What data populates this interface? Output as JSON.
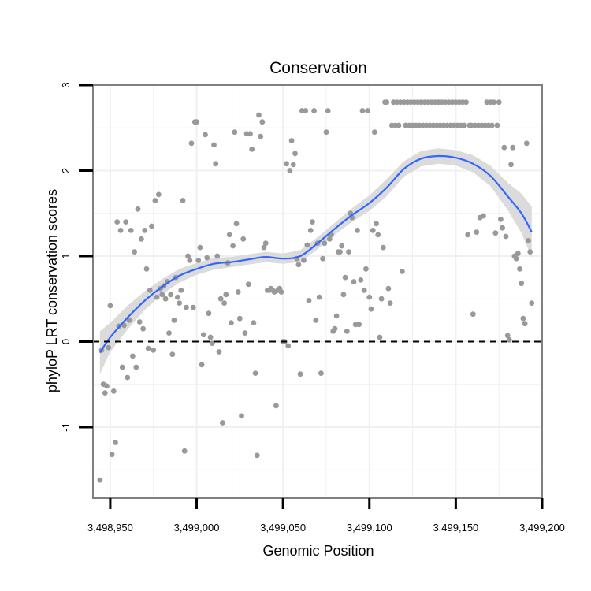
{
  "chart_data": {
    "type": "scatter",
    "title": "Conservation",
    "xlabel": "Genomic Position",
    "ylabel": "phyloP LRT conservation scores",
    "xlim": [
      3498940,
      3499200
    ],
    "ylim": [
      -1.83,
      3.0
    ],
    "x_ticks": [
      3498950,
      3499000,
      3499050,
      3499100,
      3499150,
      3499200
    ],
    "x_tick_labels": [
      "3,498,950",
      "3,499,000",
      "3,499,050",
      "3,499,100",
      "3,499,150",
      "3,499,200"
    ],
    "y_ticks": [
      -1,
      0,
      1,
      2,
      3
    ],
    "y_tick_labels": [
      "-1",
      "0",
      "1",
      "2",
      "3"
    ],
    "reference_line": {
      "y": 0,
      "style": "dashed"
    },
    "colors": {
      "points": "#999999",
      "smooth": "#3366ff",
      "ribbon": "#d9d9d9",
      "grid": "#f0f0f0",
      "border": "#808080"
    },
    "points": [
      [
        3498944,
        -1.62
      ],
      [
        3498945,
        -0.1
      ],
      [
        3498946,
        -0.5
      ],
      [
        3498947,
        -0.6
      ],
      [
        3498948,
        -0.52
      ],
      [
        3498949,
        -0.07
      ],
      [
        3498950,
        0.42
      ],
      [
        3498951,
        -1.32
      ],
      [
        3498952,
        -0.58
      ],
      [
        3498953,
        -1.18
      ],
      [
        3498954,
        1.4
      ],
      [
        3498955,
        0.18
      ],
      [
        3498956,
        1.3
      ],
      [
        3498957,
        -0.3
      ],
      [
        3498958,
        0.19
      ],
      [
        3498959,
        1.4
      ],
      [
        3498960,
        -0.42
      ],
      [
        3498961,
        0.25
      ],
      [
        3498962,
        1.3
      ],
      [
        3498963,
        -0.17
      ],
      [
        3498964,
        1.05
      ],
      [
        3498965,
        -0.3
      ],
      [
        3498966,
        1.55
      ],
      [
        3498967,
        0.23
      ],
      [
        3498968,
        1.2
      ],
      [
        3498969,
        0.15
      ],
      [
        3498970,
        1.3
      ],
      [
        3498971,
        0.85
      ],
      [
        3498972,
        -0.08
      ],
      [
        3498973,
        0.6
      ],
      [
        3498974,
        1.35
      ],
      [
        3498975,
        -0.1
      ],
      [
        3498976,
        1.65
      ],
      [
        3498977,
        0.52
      ],
      [
        3498978,
        1.72
      ],
      [
        3498979,
        0.62
      ],
      [
        3498980,
        0.55
      ],
      [
        3498981,
        0.65
      ],
      [
        3498982,
        0.5
      ],
      [
        3498983,
        0.7
      ],
      [
        3498984,
        0.1
      ],
      [
        3498985,
        0.55
      ],
      [
        3498986,
        -0.15
      ],
      [
        3498987,
        0.25
      ],
      [
        3498988,
        0.75
      ],
      [
        3498989,
        0.52
      ],
      [
        3498990,
        0.45
      ],
      [
        3498991,
        0.6
      ],
      [
        3498992,
        1.65
      ],
      [
        3498993,
        -1.28
      ],
      [
        3498994,
        0.4
      ],
      [
        3498995,
        1.0
      ],
      [
        3498996,
        0.95
      ],
      [
        3498997,
        2.32
      ],
      [
        3498998,
        0.4
      ],
      [
        3498999,
        2.57
      ],
      [
        3499000,
        2.57
      ],
      [
        3499001,
        0.95
      ],
      [
        3499002,
        1.1
      ],
      [
        3499003,
        -0.27
      ],
      [
        3499004,
        0.08
      ],
      [
        3499005,
        2.42
      ],
      [
        3499006,
        0.98
      ],
      [
        3499007,
        0.33
      ],
      [
        3499008,
        0.05
      ],
      [
        3499009,
        -0.02
      ],
      [
        3499010,
        2.3
      ],
      [
        3499011,
        2.08
      ],
      [
        3499012,
        1.0
      ],
      [
        3499013,
        -0.12
      ],
      [
        3499014,
        0.5
      ],
      [
        3499015,
        -0.95
      ],
      [
        3499016,
        0.45
      ],
      [
        3499017,
        0.55
      ],
      [
        3499018,
        0.92
      ],
      [
        3499019,
        1.25
      ],
      [
        3499020,
        0.22
      ],
      [
        3499021,
        1.12
      ],
      [
        3499022,
        2.45
      ],
      [
        3499023,
        1.38
      ],
      [
        3499024,
        0.58
      ],
      [
        3499025,
        0.27
      ],
      [
        3499026,
        -0.87
      ],
      [
        3499027,
        1.2
      ],
      [
        3499028,
        0.1
      ],
      [
        3499029,
        2.43
      ],
      [
        3499030,
        0.67
      ],
      [
        3499031,
        2.43
      ],
      [
        3499032,
        2.25
      ],
      [
        3499033,
        0.22
      ],
      [
        3499034,
        -0.37
      ],
      [
        3499035,
        -1.33
      ],
      [
        3499036,
        2.65
      ],
      [
        3499037,
        2.4
      ],
      [
        3499038,
        2.57
      ],
      [
        3499039,
        1.1
      ],
      [
        3499040,
        1.15
      ],
      [
        3499041,
        0.6
      ],
      [
        3499042,
        0.6
      ],
      [
        3499043,
        0.62
      ],
      [
        3499044,
        0.6
      ],
      [
        3499045,
        0.58
      ],
      [
        3499046,
        -0.75
      ],
      [
        3499047,
        0.6
      ],
      [
        3499048,
        0.62
      ],
      [
        3499049,
        0.58
      ],
      [
        3499050,
        0.0
      ],
      [
        3499051,
        0.0
      ],
      [
        3499052,
        2.08
      ],
      [
        3499053,
        -0.05
      ],
      [
        3499054,
        2.0
      ],
      [
        3499055,
        2.35
      ],
      [
        3499056,
        2.07
      ],
      [
        3499057,
        2.2
      ],
      [
        3499058,
        0.97
      ],
      [
        3499059,
        0.9
      ],
      [
        3499060,
        -0.38
      ],
      [
        3499061,
        2.7
      ],
      [
        3499062,
        0.95
      ],
      [
        3499063,
        2.7
      ],
      [
        3499064,
        1.13
      ],
      [
        3499065,
        0.48
      ],
      [
        3499066,
        1.3
      ],
      [
        3499067,
        1.4
      ],
      [
        3499068,
        2.7
      ],
      [
        3499069,
        0.25
      ],
      [
        3499070,
        1.15
      ],
      [
        3499071,
        0.52
      ],
      [
        3499072,
        -0.37
      ],
      [
        3499073,
        0.97
      ],
      [
        3499074,
        1.15
      ],
      [
        3499075,
        2.45
      ],
      [
        3499076,
        2.7
      ],
      [
        3499077,
        1.2
      ],
      [
        3499078,
        1.25
      ],
      [
        3499079,
        0.12
      ],
      [
        3499080,
        0.15
      ],
      [
        3499081,
        0.3
      ],
      [
        3499082,
        1.05
      ],
      [
        3499083,
        1.05
      ],
      [
        3499084,
        1.12
      ],
      [
        3499085,
        0.55
      ],
      [
        3499086,
        0.75
      ],
      [
        3499087,
        0.12
      ],
      [
        3499088,
        1.05
      ],
      [
        3499089,
        1.5
      ],
      [
        3499090,
        1.45
      ],
      [
        3499091,
        0.7
      ],
      [
        3499092,
        0.2
      ],
      [
        3499093,
        1.3
      ],
      [
        3499094,
        0.2
      ],
      [
        3499095,
        0.72
      ],
      [
        3499096,
        2.7
      ],
      [
        3499097,
        0.6
      ],
      [
        3499098,
        0.85
      ],
      [
        3499099,
        2.7
      ],
      [
        3499100,
        0.52
      ],
      [
        3499101,
        0.38
      ],
      [
        3499102,
        1.3
      ],
      [
        3499103,
        2.45
      ],
      [
        3499104,
        1.38
      ],
      [
        3499105,
        1.25
      ],
      [
        3499106,
        0.05
      ],
      [
        3499107,
        0.5
      ],
      [
        3499108,
        1.1
      ],
      [
        3499109,
        2.8
      ],
      [
        3499110,
        2.8
      ],
      [
        3499111,
        0.62
      ],
      [
        3499112,
        0.45
      ],
      [
        3499113,
        2.53
      ],
      [
        3499114,
        2.8
      ],
      [
        3499115,
        2.53
      ],
      [
        3499116,
        2.8
      ],
      [
        3499117,
        2.53
      ],
      [
        3499118,
        2.8
      ],
      [
        3499119,
        0.82
      ],
      [
        3499120,
        2.8
      ],
      [
        3499121,
        2.53
      ],
      [
        3499122,
        2.8
      ],
      [
        3499123,
        2.53
      ],
      [
        3499124,
        2.8
      ],
      [
        3499125,
        2.53
      ],
      [
        3499126,
        2.8
      ],
      [
        3499127,
        2.53
      ],
      [
        3499128,
        2.8
      ],
      [
        3499129,
        2.53
      ],
      [
        3499130,
        2.8
      ],
      [
        3499131,
        2.53
      ],
      [
        3499132,
        2.8
      ],
      [
        3499133,
        2.53
      ],
      [
        3499134,
        2.8
      ],
      [
        3499135,
        2.53
      ],
      [
        3499136,
        2.8
      ],
      [
        3499137,
        2.53
      ],
      [
        3499138,
        2.8
      ],
      [
        3499139,
        2.53
      ],
      [
        3499140,
        2.8
      ],
      [
        3499141,
        2.53
      ],
      [
        3499142,
        2.8
      ],
      [
        3499143,
        2.53
      ],
      [
        3499144,
        2.8
      ],
      [
        3499145,
        2.53
      ],
      [
        3499146,
        2.8
      ],
      [
        3499147,
        2.53
      ],
      [
        3499148,
        2.8
      ],
      [
        3499149,
        2.53
      ],
      [
        3499150,
        2.8
      ],
      [
        3499151,
        2.53
      ],
      [
        3499152,
        2.8
      ],
      [
        3499153,
        2.53
      ],
      [
        3499154,
        2.8
      ],
      [
        3499155,
        2.53
      ],
      [
        3499156,
        2.8
      ],
      [
        3499157,
        1.25
      ],
      [
        3499158,
        2.53
      ],
      [
        3499159,
        2.53
      ],
      [
        3499160,
        0.32
      ],
      [
        3499161,
        2.53
      ],
      [
        3499162,
        1.28
      ],
      [
        3499163,
        2.53
      ],
      [
        3499164,
        1.45
      ],
      [
        3499165,
        2.53
      ],
      [
        3499166,
        1.47
      ],
      [
        3499167,
        2.53
      ],
      [
        3499168,
        2.8
      ],
      [
        3499169,
        2.53
      ],
      [
        3499170,
        2.8
      ],
      [
        3499171,
        2.53
      ],
      [
        3499172,
        2.8
      ],
      [
        3499173,
        1.27
      ],
      [
        3499174,
        2.53
      ],
      [
        3499175,
        2.8
      ],
      [
        3499176,
        1.43
      ],
      [
        3499177,
        1.33
      ],
      [
        3499178,
        2.27
      ],
      [
        3499179,
        1.23
      ],
      [
        3499180,
        0.07
      ],
      [
        3499181,
        0.02
      ],
      [
        3499182,
        2.07
      ],
      [
        3499183,
        2.27
      ],
      [
        3499184,
        1.0
      ],
      [
        3499185,
        0.97
      ],
      [
        3499186,
        1.03
      ],
      [
        3499187,
        0.85
      ],
      [
        3499188,
        0.68
      ],
      [
        3499189,
        0.27
      ],
      [
        3499190,
        0.21
      ],
      [
        3499191,
        2.32
      ],
      [
        3499192,
        1.18
      ],
      [
        3499193,
        1.05
      ],
      [
        3499194,
        0.45
      ]
    ],
    "smooth": {
      "x": [
        3498944,
        3498950,
        3498960,
        3498970,
        3498980,
        3498990,
        3499000,
        3499010,
        3499020,
        3499030,
        3499040,
        3499050,
        3499060,
        3499070,
        3499080,
        3499090,
        3499100,
        3499110,
        3499120,
        3499130,
        3499140,
        3499150,
        3499160,
        3499170,
        3499180,
        3499188,
        3499194
      ],
      "y": [
        -0.13,
        0.05,
        0.28,
        0.48,
        0.64,
        0.77,
        0.85,
        0.91,
        0.93,
        0.96,
        0.99,
        0.97,
        1.0,
        1.15,
        1.32,
        1.48,
        1.62,
        1.8,
        2.02,
        2.14,
        2.17,
        2.15,
        2.08,
        1.94,
        1.7,
        1.5,
        1.28
      ],
      "lower": [
        -0.38,
        -0.12,
        0.14,
        0.37,
        0.55,
        0.69,
        0.78,
        0.84,
        0.87,
        0.9,
        0.93,
        0.91,
        0.93,
        1.08,
        1.25,
        1.4,
        1.53,
        1.7,
        1.93,
        2.05,
        2.08,
        2.06,
        1.98,
        1.82,
        1.54,
        1.27,
        0.98
      ],
      "upper": [
        0.12,
        0.22,
        0.42,
        0.59,
        0.73,
        0.85,
        0.92,
        0.98,
        0.99,
        1.02,
        1.05,
        1.03,
        1.07,
        1.22,
        1.39,
        1.56,
        1.71,
        1.9,
        2.11,
        2.23,
        2.26,
        2.24,
        2.18,
        2.06,
        1.86,
        1.73,
        1.58
      ]
    }
  }
}
